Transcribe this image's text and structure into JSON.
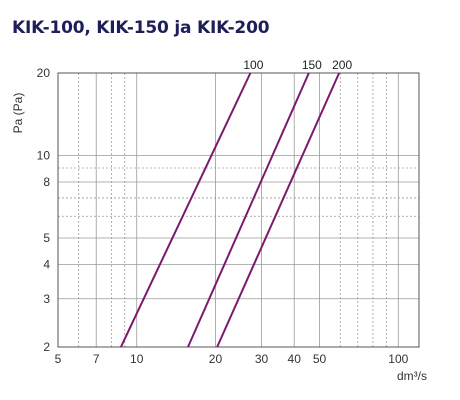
{
  "chart_data": {
    "type": "line",
    "title": "KIK-100, KIK-150 ja KIK-200",
    "xlabel": "dm³/s",
    "ylabel": "Pa (Pa)",
    "x_scale": "log",
    "y_scale": "log",
    "xlim": [
      5,
      120
    ],
    "ylim": [
      2,
      20
    ],
    "x_ticks": [
      5,
      7,
      10,
      20,
      30,
      40,
      50,
      100
    ],
    "y_ticks": [
      2,
      3,
      4,
      5,
      8,
      10,
      20
    ],
    "grid": true,
    "legend": "curve labels at top",
    "line_color": "#7a1a6e",
    "series": [
      {
        "name": "100",
        "x": [
          8.7,
          27.2
        ],
        "y": [
          2,
          20
        ]
      },
      {
        "name": "150",
        "x": [
          15.7,
          45.5
        ],
        "y": [
          2,
          20
        ]
      },
      {
        "name": "200",
        "x": [
          20.3,
          59.4
        ],
        "y": [
          2,
          20
        ]
      }
    ]
  }
}
